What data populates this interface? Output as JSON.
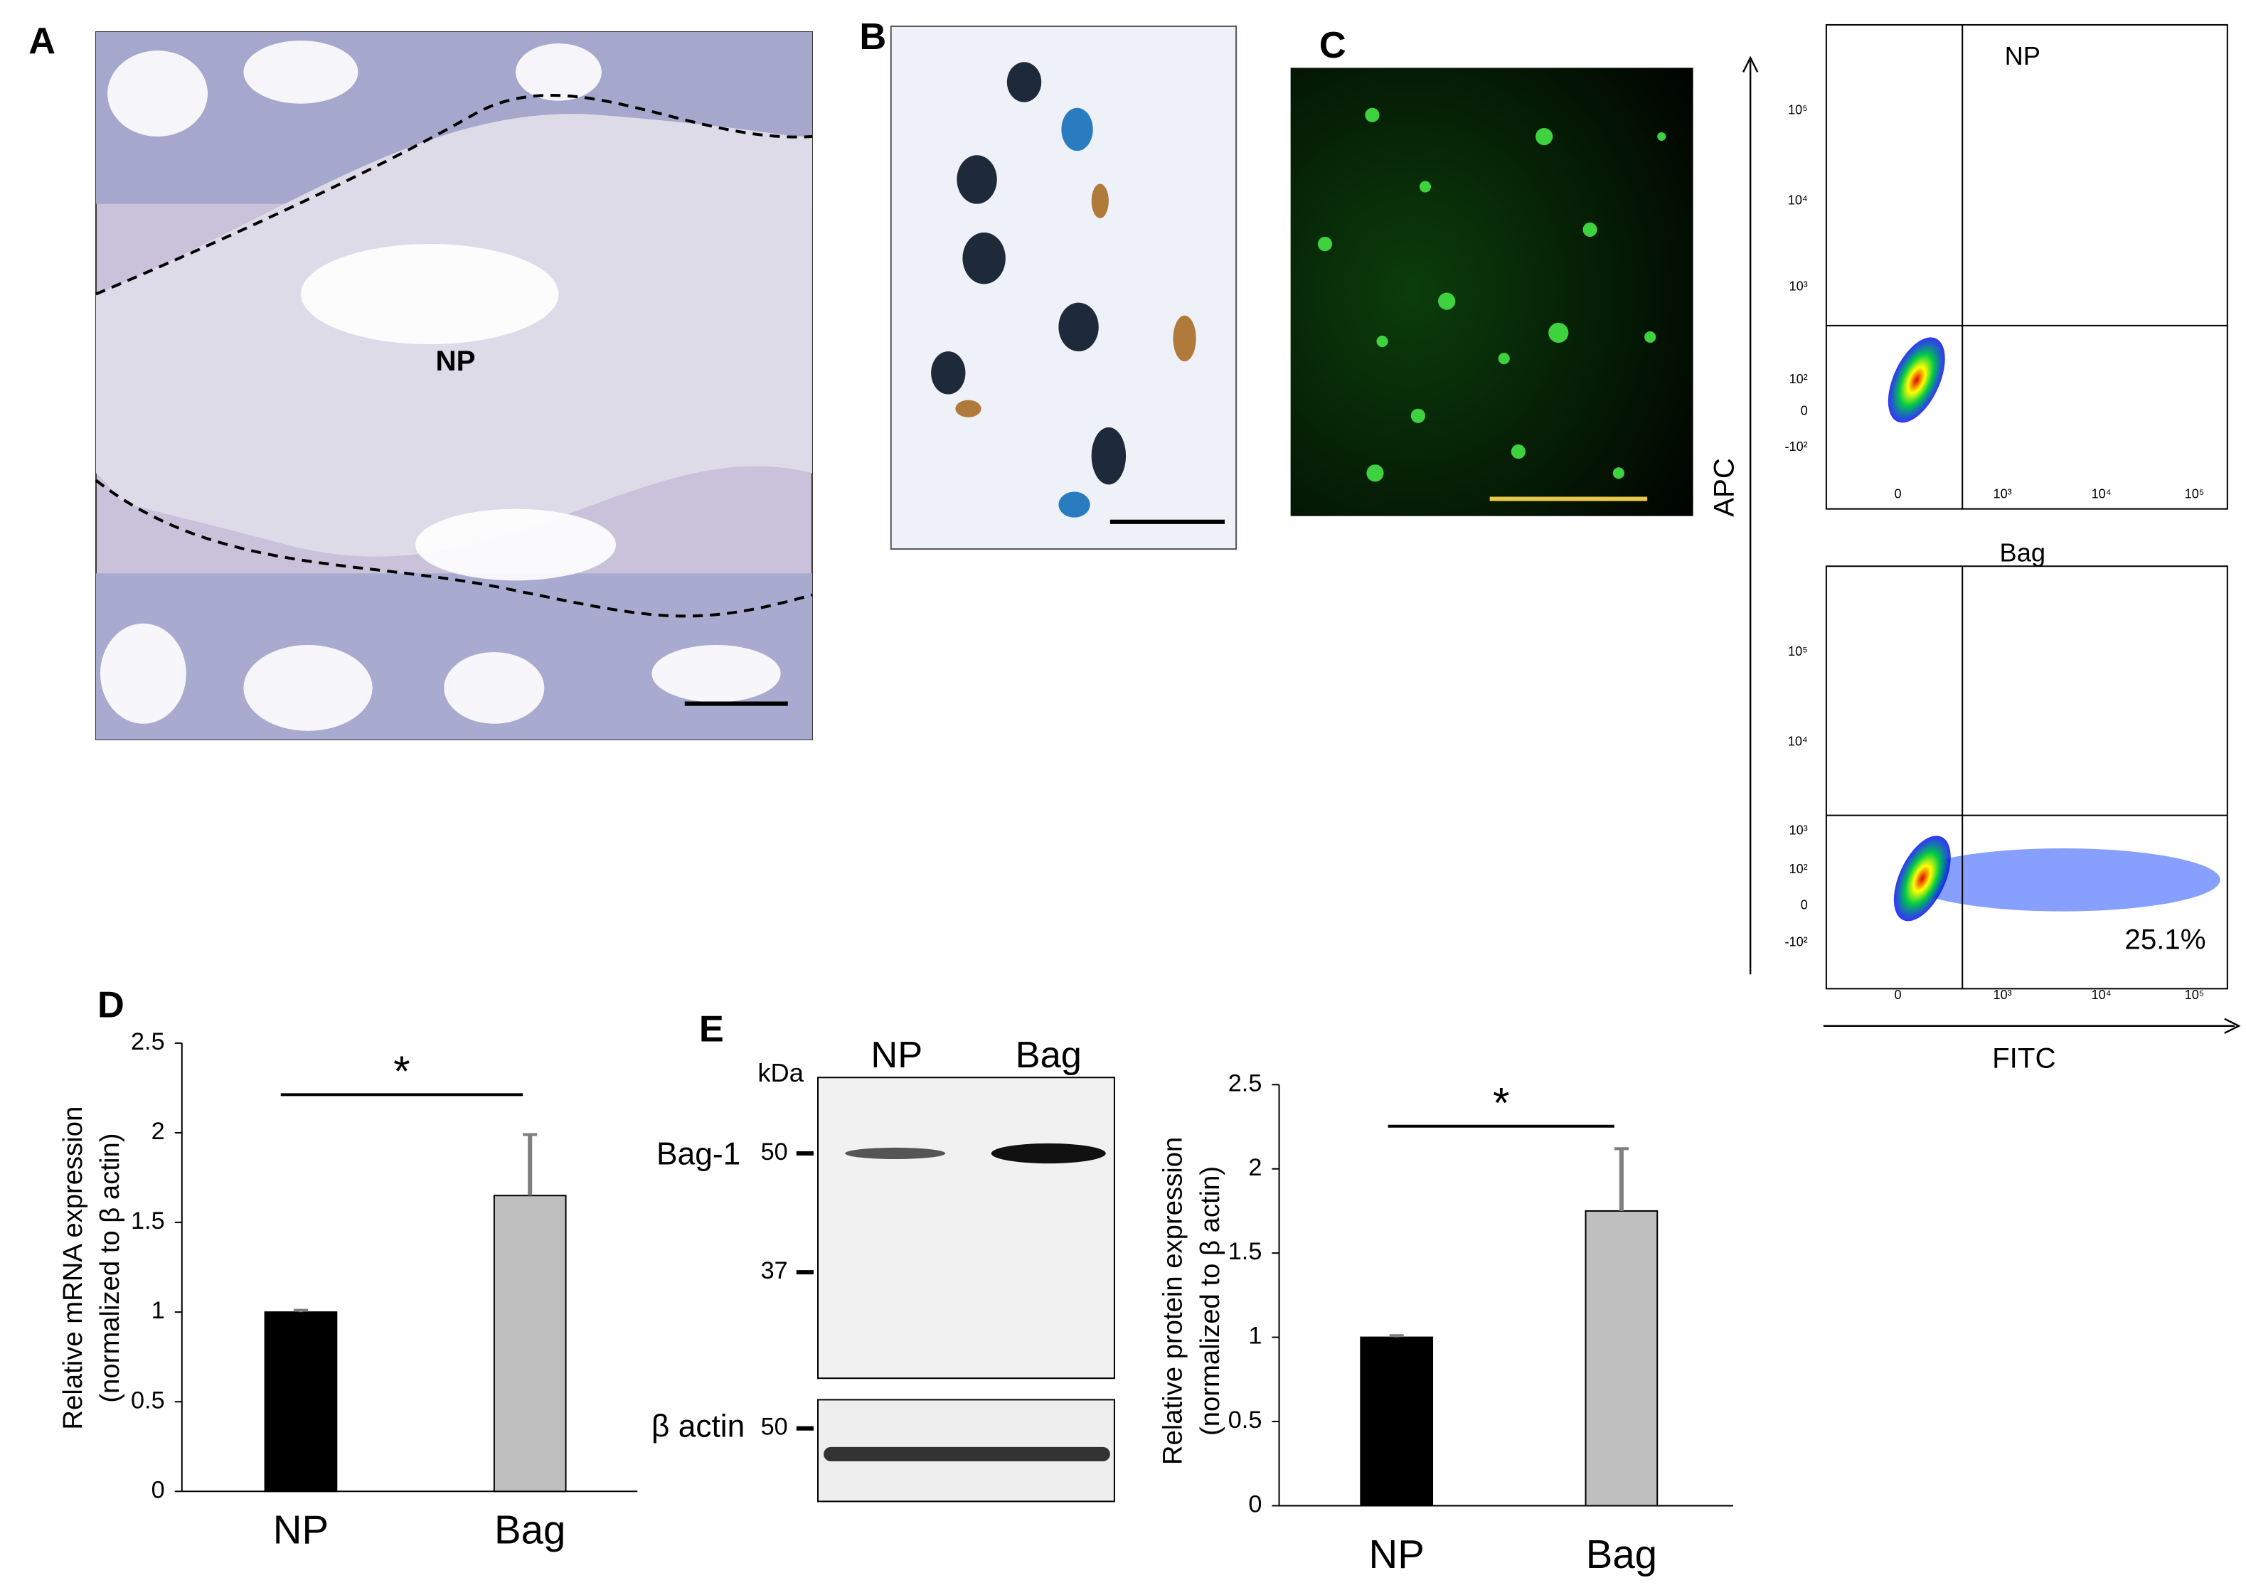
{
  "panels": {
    "A": {
      "label": "A",
      "annotation": "NP"
    },
    "B": {
      "label": "B"
    },
    "C": {
      "label": "C"
    },
    "D": {
      "label": "D"
    },
    "E": {
      "label": "E"
    }
  },
  "flow": {
    "y_label": "APC",
    "x_label": "FITC",
    "y_ticks": [
      "10⁵",
      "10⁴",
      "10³",
      "10²",
      "0",
      "-10²"
    ],
    "x_ticks": [
      "0",
      "10³",
      "10⁴",
      "10⁵"
    ],
    "plots": [
      {
        "title": "NP"
      },
      {
        "title": "Bag",
        "percent_label": "25.1%"
      }
    ]
  },
  "western": {
    "unit": "kDa",
    "lanes": [
      "NP",
      "Bag"
    ],
    "bands": [
      "Bag-1",
      "β actin"
    ],
    "markers": [
      "50",
      "37",
      "50"
    ]
  },
  "chart_data": [
    {
      "type": "bar",
      "y_label": [
        "Relative mRNA expression",
        "(normalized to β actin)"
      ],
      "categories": [
        "NP",
        "Bag"
      ],
      "values": [
        1.0,
        1.65
      ],
      "errors": [
        0.01,
        0.34
      ],
      "colors": [
        "#000000",
        "#bfbfbf"
      ],
      "ylim": [
        0,
        2.5
      ],
      "yticks": [
        0,
        0.5,
        1,
        1.5,
        2,
        2.5
      ],
      "significance": "*"
    },
    {
      "type": "bar",
      "y_label": [
        "Relative protein expression",
        "(normalized to β actin)"
      ],
      "categories": [
        "NP",
        "Bag"
      ],
      "values": [
        1.0,
        1.75
      ],
      "errors": [
        0.01,
        0.37
      ],
      "colors": [
        "#000000",
        "#bfbfbf"
      ],
      "ylim": [
        0,
        2.5
      ],
      "yticks": [
        0,
        0.5,
        1,
        1.5,
        2,
        2.5
      ],
      "significance": "*"
    }
  ]
}
